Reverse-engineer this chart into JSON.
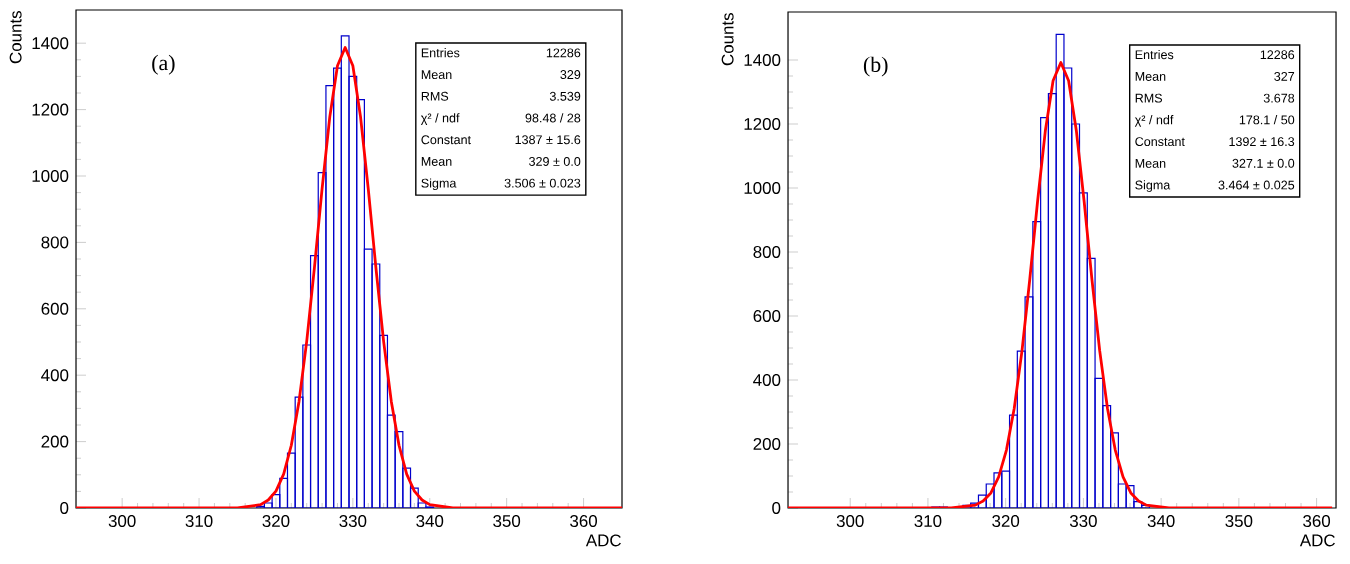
{
  "chart_data": [
    {
      "type": "histogram",
      "title": "(a)",
      "xlabel": "ADC",
      "ylabel": "Counts",
      "bins": [
        317.5,
        318.5,
        319.5,
        320.5,
        321.5,
        322.5,
        323.5,
        324.5,
        325.5,
        326.5,
        327.5,
        328.5,
        329.5,
        330.5,
        331.5,
        332.5,
        333.5,
        334.5,
        335.5,
        336.5,
        337.5,
        338.5,
        339.5,
        340.5
      ],
      "values": [
        5,
        15,
        40,
        89,
        165,
        334,
        491,
        760,
        1010,
        1272,
        1325,
        1422,
        1300,
        1230,
        780,
        735,
        520,
        280,
        230,
        120,
        60,
        15,
        3
      ],
      "color": "#0000cc",
      "series": [
        {
          "type": "line",
          "color": "#ff0000",
          "x": [
            294,
            315,
            318,
            319,
            320,
            321,
            322,
            323,
            324,
            325,
            326,
            327,
            328,
            329,
            330,
            331,
            332,
            333,
            334,
            335,
            336,
            337,
            338,
            339,
            340,
            343,
            365
          ],
          "values": [
            0,
            0,
            10,
            24,
            51,
            102,
            189,
            321,
            502,
            723,
            962,
            1178,
            1332,
            1387,
            1332,
            1178,
            962,
            723,
            502,
            321,
            189,
            102,
            51,
            24,
            10,
            0,
            0
          ]
        }
      ],
      "xlim": [
        294,
        365
      ],
      "ylim": [
        0,
        1500
      ],
      "xticks": [
        300,
        310,
        320,
        330,
        340,
        350,
        360
      ],
      "yticks": [
        0,
        200,
        400,
        600,
        800,
        1000,
        1200,
        1400
      ],
      "annotations": [
        "Entries",
        "12286",
        "Mean",
        "329",
        "RMS",
        "3.539",
        "χ² / ndf",
        "98.48 / 28",
        "Constant",
        "1387 ± 15.6",
        "Mean",
        "329 ± 0.0",
        "Sigma",
        "3.506 ± 0.023"
      ]
    },
    {
      "type": "histogram",
      "title": "(b)",
      "xlabel": "ADC",
      "ylabel": "Counts",
      "bins": [
        310.5,
        311.5,
        312.5,
        313.5,
        314.5,
        315.5,
        316.5,
        317.5,
        318.5,
        319.5,
        320.5,
        321.5,
        322.5,
        323.5,
        324.5,
        325.5,
        326.5,
        327.5,
        328.5,
        329.5,
        330.5,
        331.5,
        332.5,
        333.5,
        334.5,
        335.5,
        336.5,
        337.5,
        338.5
      ],
      "values": [
        3,
        3,
        null,
        null,
        8,
        15,
        40,
        75,
        110,
        115,
        290,
        490,
        660,
        895,
        1220,
        1295,
        1480,
        1375,
        1200,
        985,
        780,
        405,
        320,
        235,
        75,
        70,
        20,
        8
      ],
      "color": "#0000cc",
      "series": [
        {
          "type": "line",
          "color": "#ff0000",
          "x": [
            292,
            313,
            316.1,
            317.1,
            318.1,
            319.1,
            320.1,
            321.1,
            322.1,
            323.1,
            324.1,
            325.1,
            326.1,
            327.1,
            328.1,
            329.1,
            330.1,
            331.1,
            332.1,
            333.1,
            334.1,
            335.1,
            336.1,
            337.1,
            338.1,
            341,
            362
          ],
          "values": [
            0,
            0,
            9,
            22,
            47,
            97,
            181,
            311,
            491,
            714,
            957,
            1178,
            1335,
            1392,
            1335,
            1178,
            957,
            714,
            491,
            311,
            181,
            97,
            47,
            22,
            9,
            0,
            0
          ]
        }
      ],
      "xlim": [
        292,
        362.5
      ],
      "ylim": [
        0,
        1550
      ],
      "xticks": [
        300,
        310,
        320,
        330,
        340,
        350,
        360
      ],
      "yticks": [
        0,
        200,
        400,
        600,
        800,
        1000,
        1200,
        1400
      ],
      "annotations": [
        "Entries",
        "12286",
        "Mean",
        "327",
        "RMS",
        "3.678",
        "χ² / ndf",
        "178.1 / 50",
        "Constant",
        "1392 ± 16.3",
        "Mean",
        "327.1 ± 0.0",
        "Sigma",
        "3.464 ± 0.025"
      ]
    }
  ]
}
